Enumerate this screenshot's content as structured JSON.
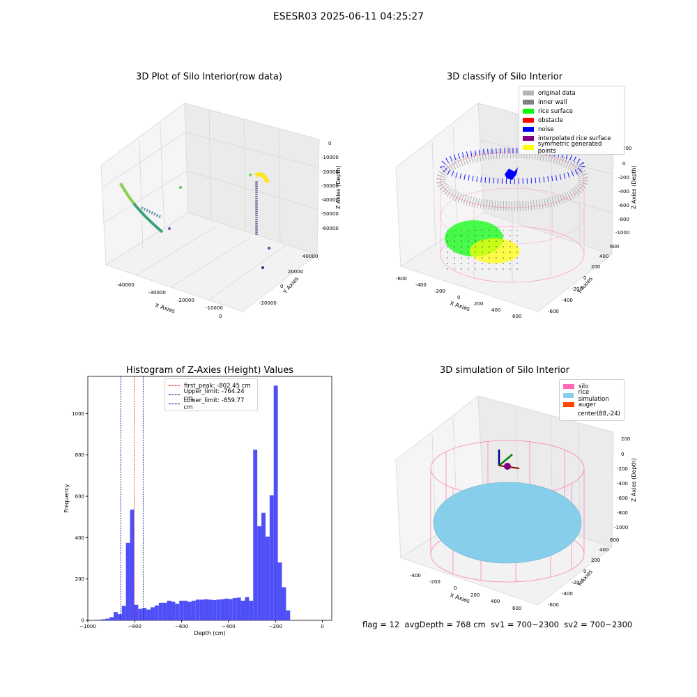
{
  "suptitle": "ESESR03 2025-06-11 04:25:27",
  "colors": {
    "hist_fill": "#4f4ff7",
    "first_peak": "#ff0000",
    "limit": "#00008b",
    "silo": "#ff69b4",
    "rice": "#87ceeb",
    "auger": "#ff4500"
  },
  "panels": {
    "raw": {
      "title": "3D Plot of Silo Interior(row data)",
      "xlabel": "X Axies",
      "ylabel": "Y Axies",
      "zlabel": "Z Axies (Depth)",
      "x_ticks": [
        "-40000",
        "-30000",
        "-20000",
        "-10000",
        "0"
      ],
      "y_ticks": [
        "-20000",
        "0",
        "20000",
        "40000"
      ],
      "z_ticks": [
        "0",
        "-10000",
        "-20000",
        "-30000",
        "-40000",
        "-50000",
        "-60000"
      ]
    },
    "classify": {
      "title": "3D classify of Silo Interior",
      "xlabel": "X Axies",
      "ylabel": "Y Axies",
      "zlabel": "Z Axies (Depth)",
      "x_ticks": [
        "-600",
        "-400",
        "-200",
        "0",
        "200",
        "400",
        "600"
      ],
      "y_ticks": [
        "-600",
        "-400",
        "-200",
        "0",
        "200",
        "400",
        "600"
      ],
      "z_ticks": [
        "200",
        "0",
        "-200",
        "-400",
        "-600",
        "-800",
        "-1000"
      ],
      "legend": [
        {
          "label": "original data",
          "color": "#b4b4b4"
        },
        {
          "label": "inner wall",
          "color": "#808080"
        },
        {
          "label": "rice surface",
          "color": "#00ff00"
        },
        {
          "label": "obstacle",
          "color": "#ff0000"
        },
        {
          "label": "noise",
          "color": "#0000ff"
        },
        {
          "label": "interpolated rice surface",
          "color": "#800080"
        },
        {
          "label": "symmetric generated points",
          "color": "#ffff00"
        }
      ]
    },
    "simulation": {
      "title": "3D simulation of Silo Interior",
      "xlabel": "X Axies",
      "ylabel": "Y Axies",
      "zlabel": "Z Axies (Depth)",
      "x_ticks": [
        "-400",
        "-200",
        "0",
        "200",
        "400",
        "600"
      ],
      "y_ticks": [
        "-600",
        "-400",
        "-200",
        "0",
        "200",
        "400",
        "600"
      ],
      "z_ticks": [
        "200",
        "0",
        "-200",
        "-400",
        "-600",
        "-800",
        "-1000"
      ],
      "legend": [
        {
          "label": "silo",
          "color": "#ff69b4"
        },
        {
          "label": "rice simulation",
          "color": "#87ceeb"
        },
        {
          "label": "auger",
          "color": "#ff4500"
        },
        {
          "label": "center(88,-24)",
          "color": "#ffffff"
        }
      ]
    }
  },
  "footer": {
    "flag": "flag = 12",
    "avg": "avgDepth = 768 cm",
    "sv1": "sv1 = 700~2300",
    "sv2": "sv2 = 700~2300"
  },
  "chart_data": [
    {
      "type": "bar",
      "title": "Histogram of Z-Axies (Height) Values",
      "xlabel": "Depth (cm)",
      "ylabel": "Frequency",
      "xlim": [
        -1000,
        40
      ],
      "ylim": [
        0,
        1180
      ],
      "x_ticks": [
        -1000,
        -800,
        -600,
        -400,
        -200,
        0
      ],
      "y_ticks": [
        0,
        200,
        400,
        600,
        800,
        1000
      ],
      "bin_start": -960,
      "bin_width": 17.5,
      "values": [
        3,
        5,
        8,
        15,
        40,
        30,
        70,
        375,
        535,
        75,
        55,
        60,
        52,
        63,
        72,
        85,
        85,
        95,
        90,
        80,
        95,
        95,
        90,
        95,
        100,
        100,
        102,
        100,
        98,
        100,
        102,
        105,
        103,
        108,
        110,
        95,
        112,
        95,
        825,
        455,
        520,
        405,
        605,
        1135,
        280,
        160,
        48
      ],
      "lines": [
        {
          "label": "first_peak: -802.45 cm",
          "x": -802.45,
          "color": "#ff0000"
        },
        {
          "label": "Upper_limit: -764.24 cm",
          "x": -764.24,
          "color": "#00008b"
        },
        {
          "label": "Lower_limit: -859.77 cm",
          "x": -859.77,
          "color": "#00008b"
        }
      ],
      "legend_position": "top-center"
    }
  ]
}
